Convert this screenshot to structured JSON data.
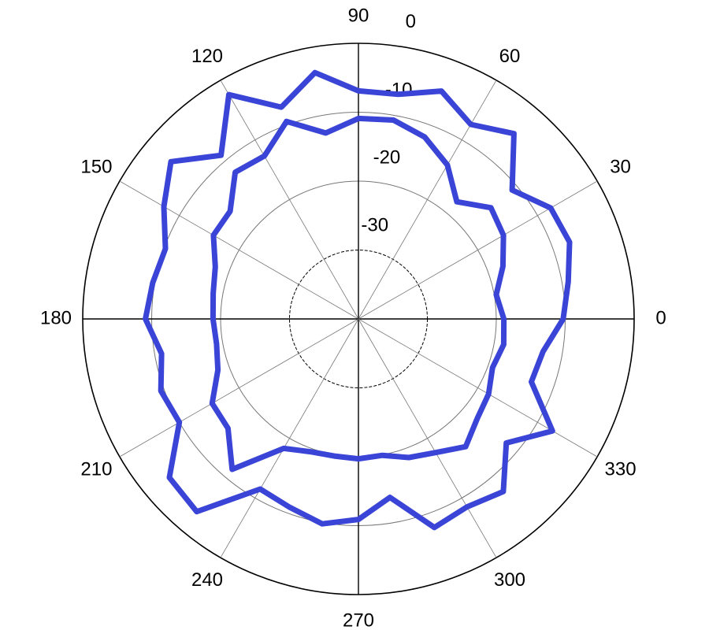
{
  "chart_data": {
    "type": "polar",
    "theta": [
      0,
      10,
      20,
      30,
      40,
      50,
      60,
      70,
      80,
      90,
      100,
      110,
      120,
      130,
      140,
      150,
      160,
      170,
      180,
      190,
      200,
      210,
      220,
      230,
      240,
      250,
      260,
      270,
      280,
      290,
      300,
      310,
      320,
      330,
      340,
      350
    ],
    "series": [
      {
        "color": "#3a44d6",
        "values": [
          -10.3,
          -9.1,
          -7.4,
          -7.8,
          -10.9,
          -4.9,
          -7.4,
          -4.8,
          -6.9,
          -6.9,
          -3.7,
          -7.3,
          -2.4,
          -9,
          -4.5,
          -7.4,
          -10.2,
          -9.7,
          -9.1,
          -11,
          -9.5,
          -10,
          -4.2,
          -3.5,
          -11.5,
          -10.9,
          -9.8,
          -10.9,
          -13.7,
          -7.8,
          -8.5,
          -7.3,
          -12,
          -7.5,
          -13.3,
          -12.8
        ]
      },
      {
        "color": "#3a44d6",
        "values": [
          -18.9,
          -19.7,
          -17.7,
          -15.7,
          -14.9,
          -17.8,
          -14.2,
          -11.9,
          -10.7,
          -10.9,
          -12.6,
          -9.5,
          -12.7,
          -12.2,
          -15.7,
          -15.7,
          -17.9,
          -18.6,
          -18.9,
          -19.1,
          -18.3,
          -15.5,
          -15.3,
          -11.5,
          -18.3,
          -19.5,
          -19.8,
          -19.7,
          -19.9,
          -18.6,
          -17.6,
          -15.8,
          -17.5,
          -18.2,
          -19.3,
          -18.6
        ]
      }
    ],
    "rlim": [
      -40,
      0
    ],
    "rticks": [
      -30,
      -20,
      -10,
      0
    ],
    "thetaticks": [
      0,
      30,
      60,
      90,
      120,
      150,
      180,
      210,
      240,
      270,
      300,
      330
    ],
    "grid": true
  }
}
